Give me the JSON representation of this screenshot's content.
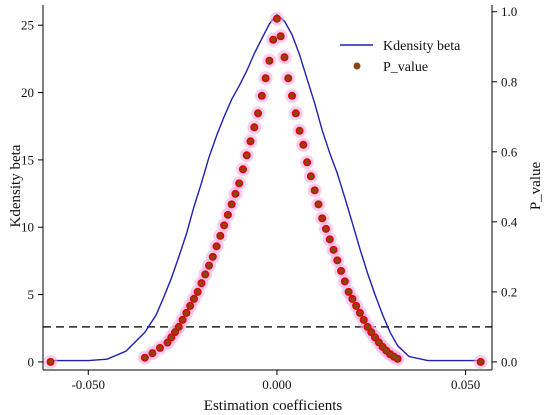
{
  "chart_data": {
    "type": "line",
    "title": "",
    "xlabel": "Estimation coefficients",
    "ylabel_left": "Kdensity beta",
    "ylabel_right": "P_value",
    "xlim": [
      -0.062,
      0.057
    ],
    "ylim_left": [
      -0.6,
      26.5
    ],
    "ylim_right": [
      -0.0231,
      1.0192
    ],
    "x_ticks": [
      -0.05,
      0.0,
      0.05
    ],
    "x_tick_labels": [
      "-0.050",
      "0.000",
      "0.050"
    ],
    "y_left_ticks": [
      0,
      5,
      10,
      15,
      20,
      25
    ],
    "y_left_tick_labels": [
      "0",
      "5",
      "10",
      "15",
      "20",
      "25"
    ],
    "y_right_ticks": [
      0.0,
      0.2,
      0.4,
      0.6,
      0.8,
      1.0
    ],
    "y_right_tick_labels": [
      "0.0",
      "0.2",
      "0.4",
      "0.6",
      "0.8",
      "1.0"
    ],
    "grid": false,
    "legend": {
      "placement": "top-right",
      "entries": [
        "Kdensity beta",
        "P_value"
      ]
    },
    "reference_line": {
      "axis": "y_right",
      "value": 0.1,
      "style": "dashed"
    },
    "colors": {
      "kdensity": "#1f1fb4",
      "pvalue_dot": "#8b4513",
      "pvalue_dense": "#e00000",
      "halo": "#f4a6e6",
      "reference": "#222222"
    },
    "series": [
      {
        "name": "Kdensity beta",
        "axis": "left",
        "x": [
          -0.06,
          -0.05,
          -0.045,
          -0.04,
          -0.035,
          -0.032,
          -0.03,
          -0.028,
          -0.026,
          -0.024,
          -0.022,
          -0.02,
          -0.018,
          -0.016,
          -0.014,
          -0.012,
          -0.01,
          -0.008,
          -0.006,
          -0.004,
          -0.002,
          0.0,
          0.002,
          0.004,
          0.006,
          0.008,
          0.01,
          0.012,
          0.014,
          0.016,
          0.018,
          0.02,
          0.022,
          0.024,
          0.026,
          0.028,
          0.03,
          0.032,
          0.035,
          0.04,
          0.045,
          0.05,
          0.055
        ],
        "y": [
          0.1,
          0.1,
          0.2,
          0.8,
          2.2,
          3.5,
          4.8,
          6.2,
          7.8,
          9.5,
          11.5,
          13.3,
          15.2,
          16.8,
          18.2,
          19.5,
          20.5,
          21.6,
          22.9,
          24.0,
          25.1,
          25.8,
          25.3,
          24.3,
          22.8,
          21.0,
          19.2,
          17.2,
          15.5,
          14.0,
          12.2,
          10.3,
          8.4,
          6.6,
          5.0,
          3.5,
          2.2,
          1.2,
          0.4,
          0.1,
          0.1,
          0.1,
          0.1
        ]
      },
      {
        "name": "P_value",
        "axis": "right",
        "type": "scatter",
        "x": [
          -0.06,
          -0.035,
          -0.033,
          -0.031,
          -0.029,
          -0.028,
          -0.027,
          -0.026,
          -0.025,
          -0.024,
          -0.023,
          -0.022,
          -0.021,
          -0.02,
          -0.019,
          -0.018,
          -0.017,
          -0.016,
          -0.015,
          -0.014,
          -0.013,
          -0.012,
          -0.011,
          -0.01,
          -0.009,
          -0.008,
          -0.007,
          -0.006,
          -0.005,
          -0.004,
          -0.003,
          -0.002,
          -0.001,
          0.0,
          0.001,
          0.002,
          0.003,
          0.004,
          0.005,
          0.006,
          0.007,
          0.008,
          0.009,
          0.01,
          0.011,
          0.012,
          0.013,
          0.014,
          0.015,
          0.016,
          0.017,
          0.018,
          0.019,
          0.02,
          0.021,
          0.022,
          0.023,
          0.024,
          0.025,
          0.026,
          0.027,
          0.028,
          0.029,
          0.03,
          0.031,
          0.032,
          0.054
        ],
        "y": [
          0.0,
          0.012,
          0.025,
          0.04,
          0.055,
          0.07,
          0.085,
          0.1,
          0.12,
          0.14,
          0.16,
          0.18,
          0.2,
          0.225,
          0.25,
          0.275,
          0.3,
          0.33,
          0.36,
          0.39,
          0.42,
          0.45,
          0.48,
          0.51,
          0.55,
          0.59,
          0.63,
          0.67,
          0.71,
          0.76,
          0.81,
          0.86,
          0.92,
          0.98,
          0.93,
          0.87,
          0.81,
          0.76,
          0.71,
          0.66,
          0.62,
          0.57,
          0.53,
          0.49,
          0.45,
          0.41,
          0.38,
          0.35,
          0.32,
          0.29,
          0.26,
          0.23,
          0.2,
          0.18,
          0.16,
          0.14,
          0.12,
          0.1,
          0.085,
          0.07,
          0.056,
          0.043,
          0.032,
          0.022,
          0.015,
          0.009,
          0.0
        ]
      }
    ]
  }
}
